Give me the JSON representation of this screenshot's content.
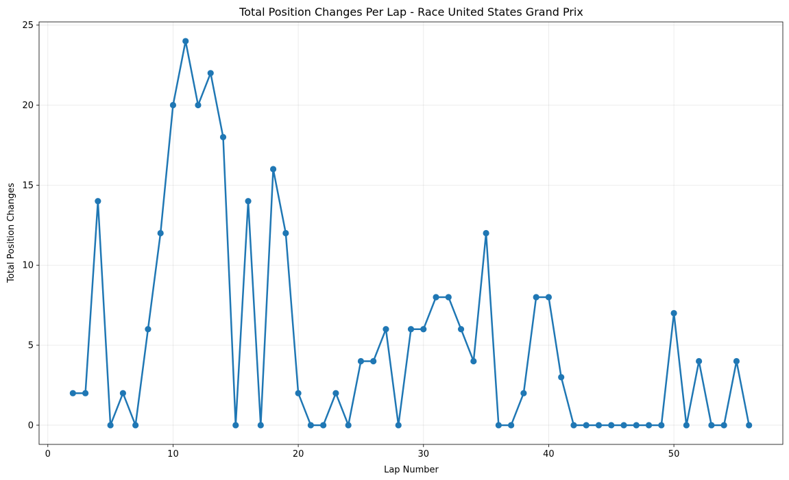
{
  "chart_data": {
    "type": "line",
    "title": "Total Position Changes Per Lap - Race United States Grand Prix",
    "xlabel": "Lap Number",
    "ylabel": "Total Position Changes",
    "xlim": [
      -0.7,
      58.7
    ],
    "ylim": [
      -1.2,
      25.2
    ],
    "xticks": [
      0,
      10,
      20,
      30,
      40,
      50
    ],
    "yticks": [
      0,
      5,
      10,
      15,
      20,
      25
    ],
    "grid": true,
    "series": [
      {
        "color": "#1f77b4",
        "marker": "circle",
        "x": [
          2,
          3,
          4,
          5,
          6,
          7,
          8,
          9,
          10,
          11,
          12,
          13,
          14,
          15,
          16,
          17,
          18,
          19,
          20,
          21,
          22,
          23,
          24,
          25,
          26,
          27,
          28,
          29,
          30,
          31,
          32,
          33,
          34,
          35,
          36,
          37,
          38,
          39,
          40,
          41,
          42,
          43,
          44,
          45,
          46,
          47,
          48,
          49,
          50,
          51,
          52,
          53,
          54,
          55,
          56
        ],
        "y": [
          2,
          2,
          14,
          0,
          2,
          0,
          6,
          12,
          20,
          24,
          20,
          22,
          18,
          0,
          14,
          0,
          16,
          12,
          2,
          0,
          0,
          2,
          0,
          4,
          4,
          6,
          0,
          6,
          6,
          8,
          8,
          6,
          4,
          12,
          0,
          0,
          2,
          8,
          8,
          3,
          0,
          0,
          0,
          0,
          0,
          0,
          0,
          0,
          7,
          0,
          4,
          0,
          0,
          4,
          0
        ]
      }
    ]
  }
}
